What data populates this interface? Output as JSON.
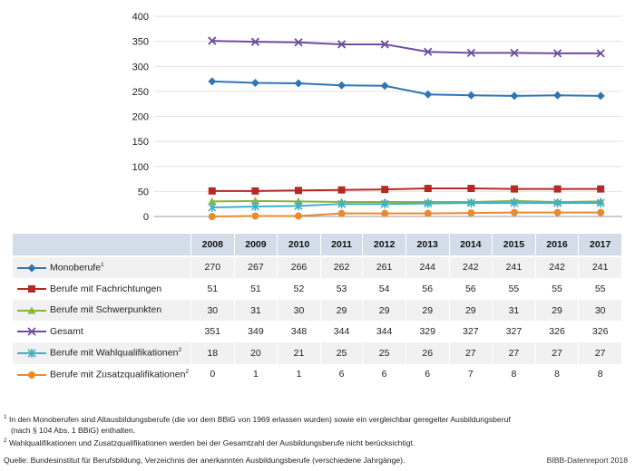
{
  "chart_data": {
    "type": "line",
    "x": [
      "2008",
      "2009",
      "2010",
      "2011",
      "2012",
      "2013",
      "2014",
      "2015",
      "2016",
      "2017"
    ],
    "ylim": [
      0,
      400
    ],
    "yticks": [
      "0",
      "50",
      "100",
      "150",
      "200",
      "250",
      "300",
      "350",
      "400"
    ],
    "grid": true,
    "series": [
      {
        "name": "Monoberufe",
        "sup": "1",
        "color": "#2e75b6",
        "marker": "diamond",
        "values": [
          270,
          267,
          266,
          262,
          261,
          244,
          242,
          241,
          242,
          241
        ]
      },
      {
        "name": "Berufe mit Fachrichtungen",
        "sup": "",
        "color": "#b52a24",
        "marker": "square",
        "values": [
          51,
          51,
          52,
          53,
          54,
          56,
          56,
          55,
          55,
          55
        ]
      },
      {
        "name": "Berufe mit Schwerpunkten",
        "sup": "",
        "color": "#8ab23d",
        "marker": "triangle",
        "values": [
          30,
          31,
          30,
          29,
          29,
          29,
          29,
          31,
          29,
          30
        ]
      },
      {
        "name": "Gesamt",
        "sup": "",
        "color": "#6f4c9e",
        "marker": "x",
        "values": [
          351,
          349,
          348,
          344,
          344,
          329,
          327,
          327,
          326,
          326
        ]
      },
      {
        "name": "Berufe mit Wahlqualifikationen",
        "sup": "2",
        "color": "#3fb0c9",
        "marker": "star",
        "values": [
          18,
          20,
          21,
          25,
          25,
          26,
          27,
          27,
          27,
          27
        ]
      },
      {
        "name": "Berufe mit Zusatzqualifikationen",
        "sup": "2",
        "color": "#e98a2f",
        "marker": "circle",
        "values": [
          0,
          1,
          1,
          6,
          6,
          6,
          7,
          8,
          8,
          8
        ]
      }
    ]
  },
  "footnotes": {
    "note1": "In den Monoberufen sind Altausbildungsberufe (die vor dem BBiG von 1969 erlassen wurden) sowie ein vergleichbar geregelter Ausbildungsberuf",
    "note1_cont": "(nach § 104 Abs. 1 BBiG) enthalten.",
    "note2": "Wahlqualifikationen und Zusatzqualifikationen werden bei der Gesamtzahl der Ausbildungsberufe nicht berücksichtigt.",
    "source": "Quelle: Bundesinstitut für Berufsbildung, Verzeichnis der anerkannten Ausbildungsberufe (verschiedene Jahrgänge).",
    "report": "BIBB-Datenreport 2018",
    "mark1": "1",
    "mark2": "2"
  }
}
